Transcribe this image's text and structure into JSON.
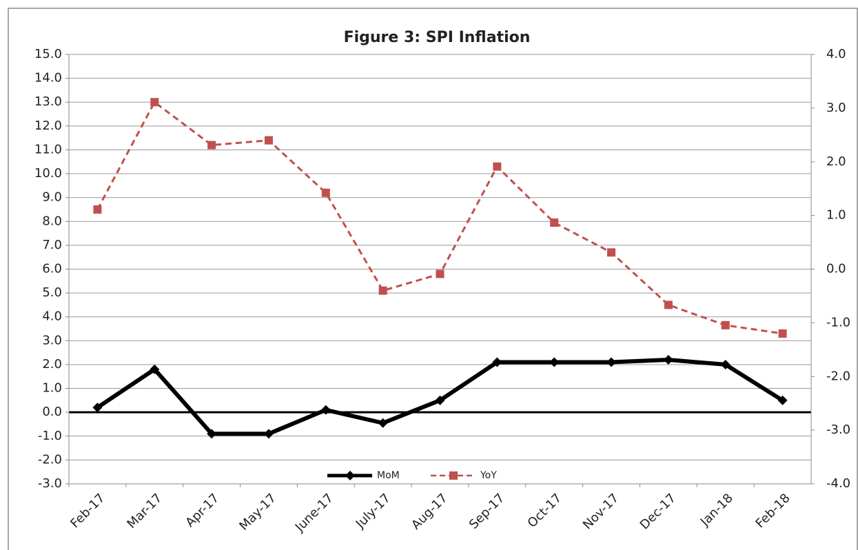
{
  "chart_data": {
    "type": "line",
    "title": "Figure 3: SPI Inflation",
    "categories": [
      "Feb-17",
      "Mar-17",
      "Apr-17",
      "May-17",
      "June-17",
      "July-17",
      "Aug-17",
      "Sep-17",
      "Oct-17",
      "Nov-17",
      "Dec-17",
      "Jan-18",
      "Feb-18"
    ],
    "series": [
      {
        "name": "MoM",
        "color": "#000000",
        "values": [
          0.2,
          1.8,
          -0.9,
          -0.9,
          0.1,
          -0.45,
          0.5,
          2.1,
          2.1,
          2.1,
          2.2,
          2.0,
          0.5
        ]
      },
      {
        "name": "YoY",
        "color": "#c0504d",
        "values": [
          8.5,
          13.0,
          11.2,
          11.4,
          9.2,
          5.1,
          5.8,
          10.3,
          7.95,
          6.7,
          4.5,
          3.65,
          3.3
        ]
      }
    ],
    "ylim": [
      -3,
      15
    ],
    "yticks": [
      {
        "value": -3,
        "label": "-3.0"
      },
      {
        "value": -2,
        "label": "-2.0"
      },
      {
        "value": -1,
        "label": "-1.0"
      },
      {
        "value": 0,
        "label": "0.0"
      },
      {
        "value": 1,
        "label": "1.0"
      },
      {
        "value": 2,
        "label": "2.0"
      },
      {
        "value": 3,
        "label": "3.0"
      },
      {
        "value": 4,
        "label": "4.0"
      },
      {
        "value": 5,
        "label": "5.0"
      },
      {
        "value": 6,
        "label": "6.0"
      },
      {
        "value": 7,
        "label": "7.0"
      },
      {
        "value": 8,
        "label": "8.0"
      },
      {
        "value": 9,
        "label": "9.0"
      },
      {
        "value": 10,
        "label": "10.0"
      },
      {
        "value": 11,
        "label": "11.0"
      },
      {
        "value": 12,
        "label": "12.0"
      },
      {
        "value": 13,
        "label": "13.0"
      },
      {
        "value": 14,
        "label": "14.0"
      },
      {
        "value": 15,
        "label": "15.0"
      }
    ],
    "y2lim": [
      -4,
      4
    ],
    "y2ticks": [
      {
        "value": -4,
        "label": "-4.0"
      },
      {
        "value": -3,
        "label": "-3.0"
      },
      {
        "value": -2,
        "label": "-2.0"
      },
      {
        "value": -1,
        "label": "-1.0"
      },
      {
        "value": 0,
        "label": "0.0"
      },
      {
        "value": 1,
        "label": "1.0"
      },
      {
        "value": 2,
        "label": "2.0"
      },
      {
        "value": 3,
        "label": "3.0"
      },
      {
        "value": 4,
        "label": "4.0"
      }
    ],
    "grid": true
  }
}
